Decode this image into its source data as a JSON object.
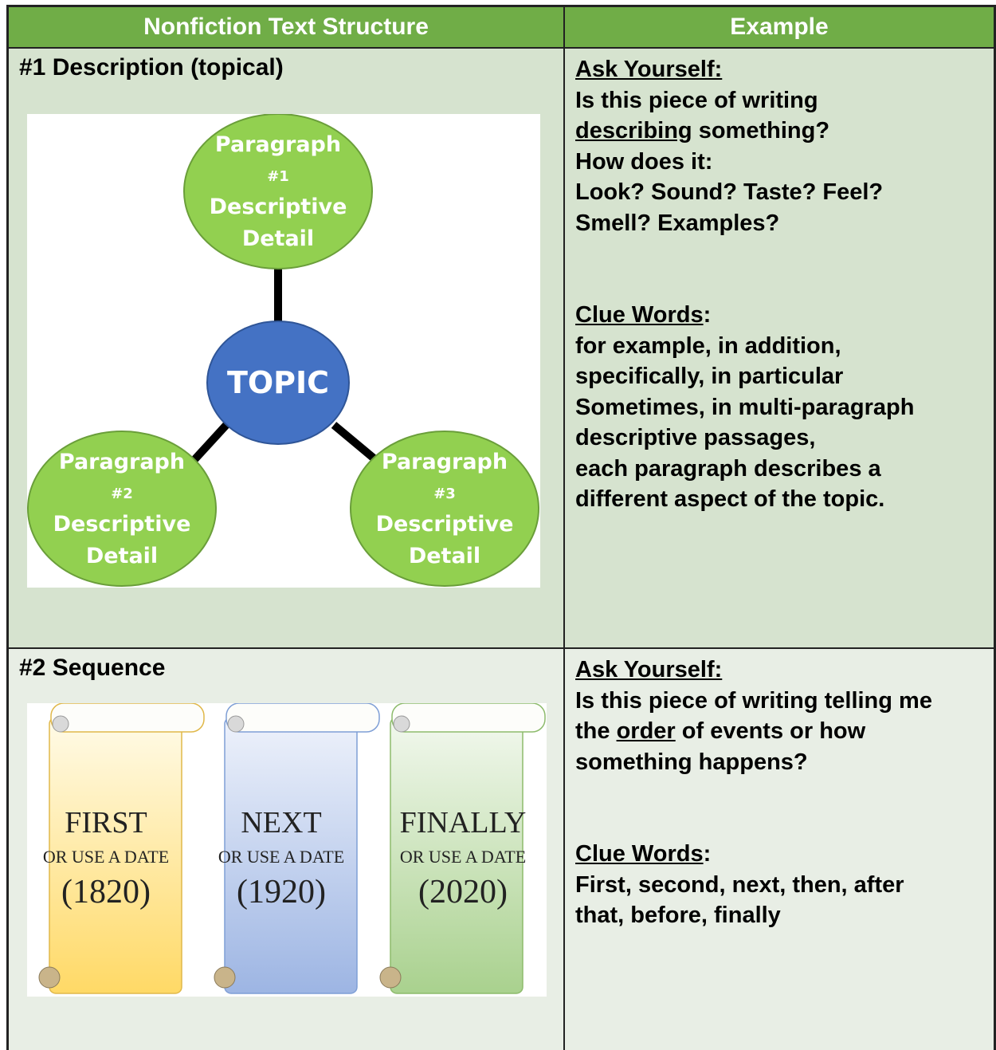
{
  "table": {
    "header": [
      "Nonfiction Text Structure",
      "Example"
    ],
    "rows": [
      {
        "structure": "#1 Description (topical)",
        "diagram": {
          "center": "TOPIC",
          "nodes": [
            {
              "title": "Paragraph",
              "number": "#1",
              "detail": [
                "Descriptive",
                "Detail"
              ]
            },
            {
              "title": "Paragraph",
              "number": "#2",
              "detail": [
                "Descriptive",
                "Detail"
              ]
            },
            {
              "title": "Paragraph",
              "number": "#3",
              "detail": [
                "Descriptive",
                "Detail"
              ]
            }
          ]
        },
        "ask": {
          "heading": "Ask Yourself:",
          "lines": [
            [
              {
                "text": "Is this piece of writing"
              }
            ],
            [
              {
                "text": "describing",
                "underline": true
              },
              {
                "text": " something?"
              }
            ],
            [
              {
                "text": "How does it:"
              }
            ],
            [
              {
                "text": "Look? Sound? Taste? Feel?"
              }
            ],
            [
              {
                "text": "Smell? Examples?"
              }
            ]
          ]
        },
        "clue": {
          "heading": "Clue Words",
          "suffix": ":",
          "lines": [
            "for example, in addition,",
            "specifically, in particular",
            "Sometimes, in multi-paragraph",
            "descriptive passages,",
            "each paragraph describes a",
            "different aspect of the topic."
          ]
        }
      },
      {
        "structure": "#2 Sequence",
        "scrolls": [
          {
            "word": "FIRST",
            "sub": "OR USE A DATE",
            "date": "(1820)"
          },
          {
            "word": "NEXT",
            "sub": "OR USE A DATE",
            "date": "(1920)"
          },
          {
            "word": "FINALLY",
            "sub": "OR USE A DATE",
            "date": "(2020)"
          }
        ],
        "ask": {
          "heading": "Ask Yourself:",
          "lines": [
            [
              {
                "text": "Is this piece of writing telling me"
              }
            ],
            [
              {
                "text": "the "
              },
              {
                "text": "order",
                "underline": true
              },
              {
                "text": " of events or how"
              }
            ],
            [
              {
                "text": "something happens?"
              }
            ]
          ]
        },
        "clue": {
          "heading": "Clue Words",
          "suffix": ":",
          "lines": [
            "First, second, next, then, after",
            "that, before, finally"
          ]
        }
      }
    ]
  }
}
